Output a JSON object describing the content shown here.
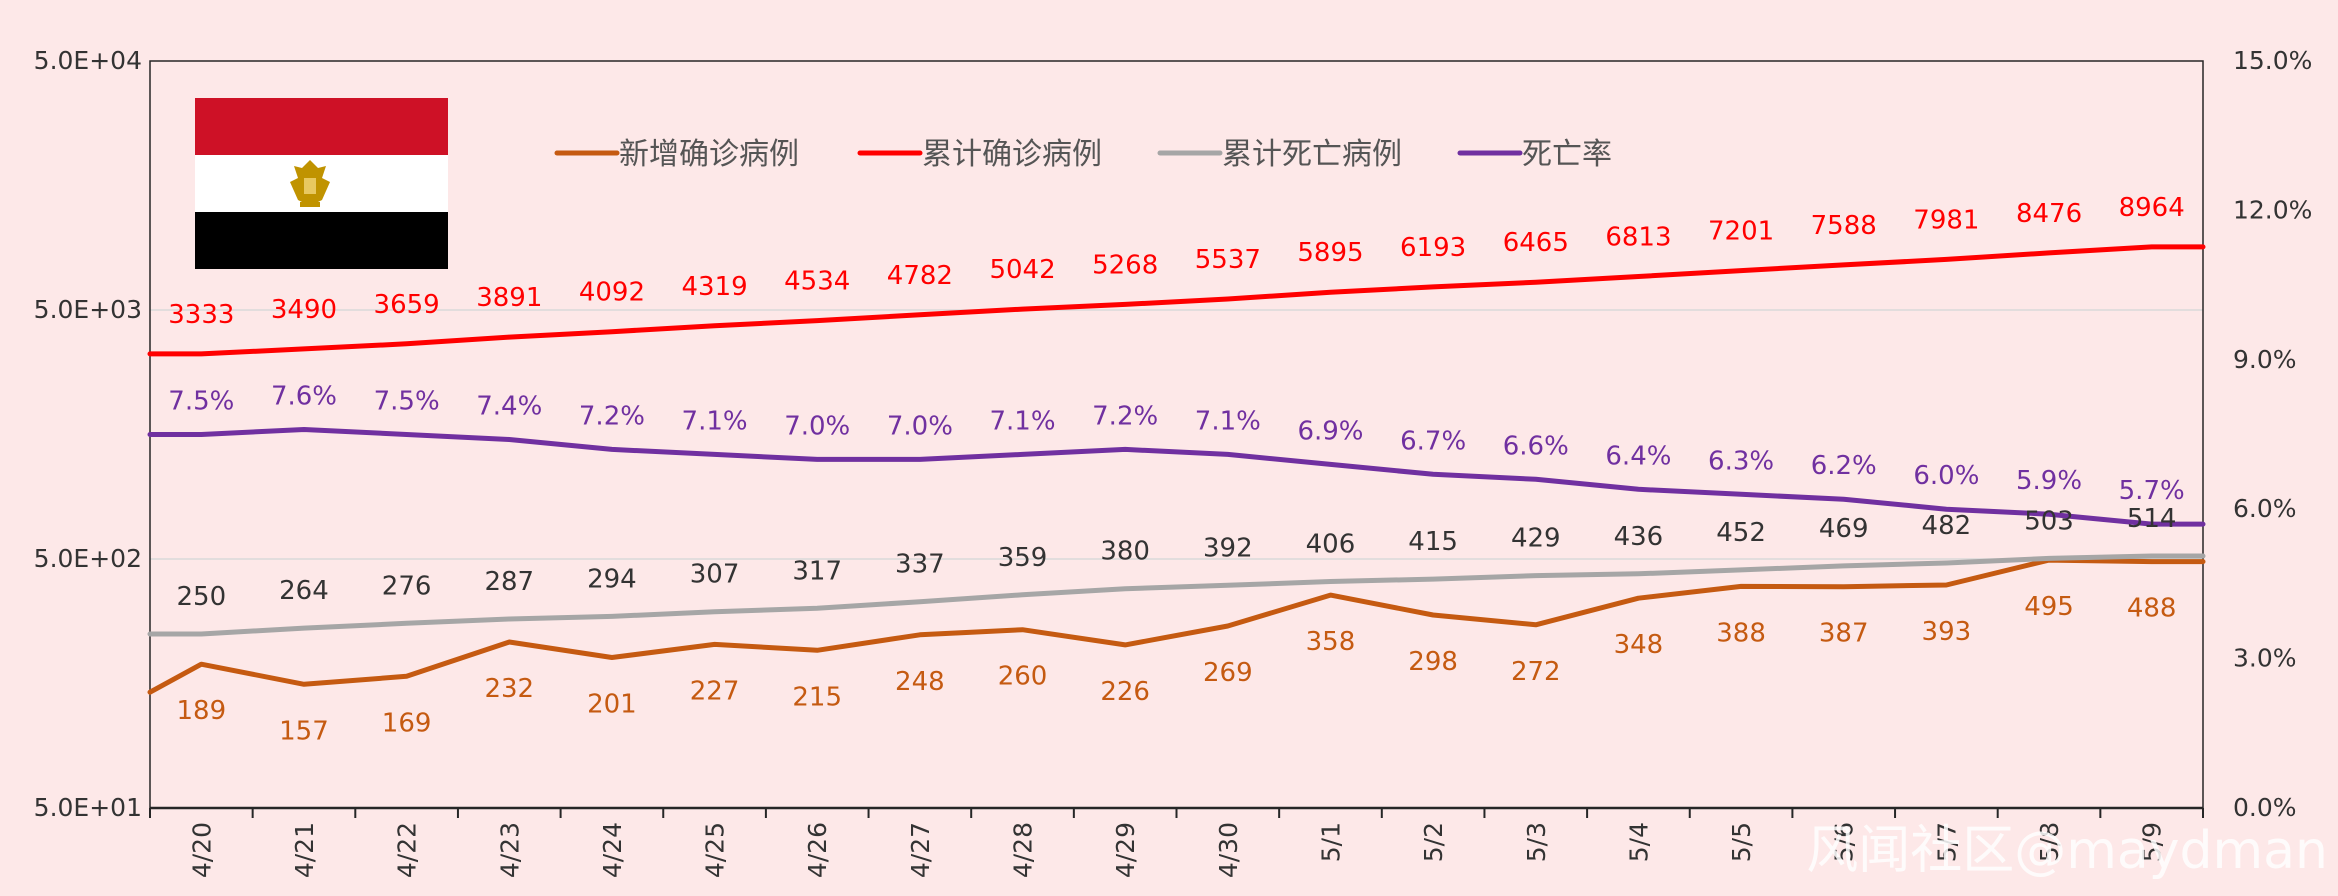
{
  "chart_data": {
    "type": "line",
    "categories": [
      "4/20",
      "4/21",
      "4/22",
      "4/23",
      "4/24",
      "4/25",
      "4/26",
      "4/27",
      "4/28",
      "4/29",
      "4/30",
      "5/1",
      "5/2",
      "5/3",
      "5/4",
      "5/5",
      "5/6",
      "5/7",
      "5/8",
      "5/9"
    ],
    "y_left": {
      "scale": "log",
      "ticks": [
        "5.0E+01",
        "5.0E+02",
        "5.0E+03",
        "5.0E+04"
      ],
      "range": [
        50,
        50000
      ]
    },
    "y_right": {
      "ticks": [
        "0.0%",
        "3.0%",
        "6.0%",
        "9.0%",
        "12.0%",
        "15.0%"
      ],
      "range": [
        0,
        15
      ]
    },
    "grid": "horizontal",
    "legend_position": "top",
    "series": [
      {
        "name": "新增确诊病例",
        "color": "#c55a11",
        "axis": "left",
        "values": [
          189,
          157,
          169,
          232,
          201,
          227,
          215,
          248,
          260,
          226,
          269,
          358,
          298,
          272,
          348,
          388,
          387,
          393,
          495,
          488
        ],
        "labels": [
          "189",
          "157",
          "169",
          "232",
          "201",
          "227",
          "215",
          "248",
          "260",
          "226",
          "269",
          "358",
          "298",
          "272",
          "348",
          "388",
          "387",
          "393",
          "495",
          "488"
        ],
        "label_color": "#c55a11"
      },
      {
        "name": "累计确诊病例",
        "color": "#ff0000",
        "axis": "left",
        "values": [
          3333,
          3490,
          3659,
          3891,
          4092,
          4319,
          4534,
          4782,
          5042,
          5268,
          5537,
          5895,
          6193,
          6465,
          6813,
          7201,
          7588,
          7981,
          8476,
          8964
        ],
        "labels": [
          "3333",
          "3490",
          "3659",
          "3891",
          "4092",
          "4319",
          "4534",
          "4782",
          "5042",
          "5268",
          "5537",
          "5895",
          "6193",
          "6465",
          "6813",
          "7201",
          "7588",
          "7981",
          "8476",
          "8964"
        ],
        "label_color": "#ff0000"
      },
      {
        "name": "累计死亡病例",
        "color": "#a6a6a6",
        "axis": "left",
        "values": [
          250,
          264,
          276,
          287,
          294,
          307,
          317,
          337,
          359,
          380,
          392,
          406,
          415,
          429,
          436,
          452,
          469,
          482,
          503,
          514
        ],
        "labels": [
          "250",
          "264",
          "276",
          "287",
          "294",
          "307",
          "317",
          "337",
          "359",
          "380",
          "392",
          "406",
          "415",
          "429",
          "436",
          "452",
          "469",
          "482",
          "503",
          "514"
        ],
        "label_color": "#333333"
      },
      {
        "name": "死亡率",
        "color": "#7030a0",
        "axis": "right",
        "values": [
          7.5,
          7.6,
          7.5,
          7.4,
          7.2,
          7.1,
          7.0,
          7.0,
          7.1,
          7.2,
          7.1,
          6.9,
          6.7,
          6.6,
          6.4,
          6.3,
          6.2,
          6.0,
          5.9,
          5.7
        ],
        "labels": [
          "7.5%",
          "7.6%",
          "7.5%",
          "7.4%",
          "7.2%",
          "7.1%",
          "7.0%",
          "7.0%",
          "7.1%",
          "7.2%",
          "7.1%",
          "6.9%",
          "6.7%",
          "6.6%",
          "6.4%",
          "6.3%",
          "6.2%",
          "6.0%",
          "5.9%",
          "5.7%"
        ],
        "label_color": "#7030a0"
      }
    ],
    "flag": {
      "top_color": "#ce1126",
      "middle_color": "#ffffff",
      "bottom_color": "#000000",
      "emblem": "eagle-of-saladin-emblem"
    },
    "watermark": "风闻社区@maydman"
  }
}
